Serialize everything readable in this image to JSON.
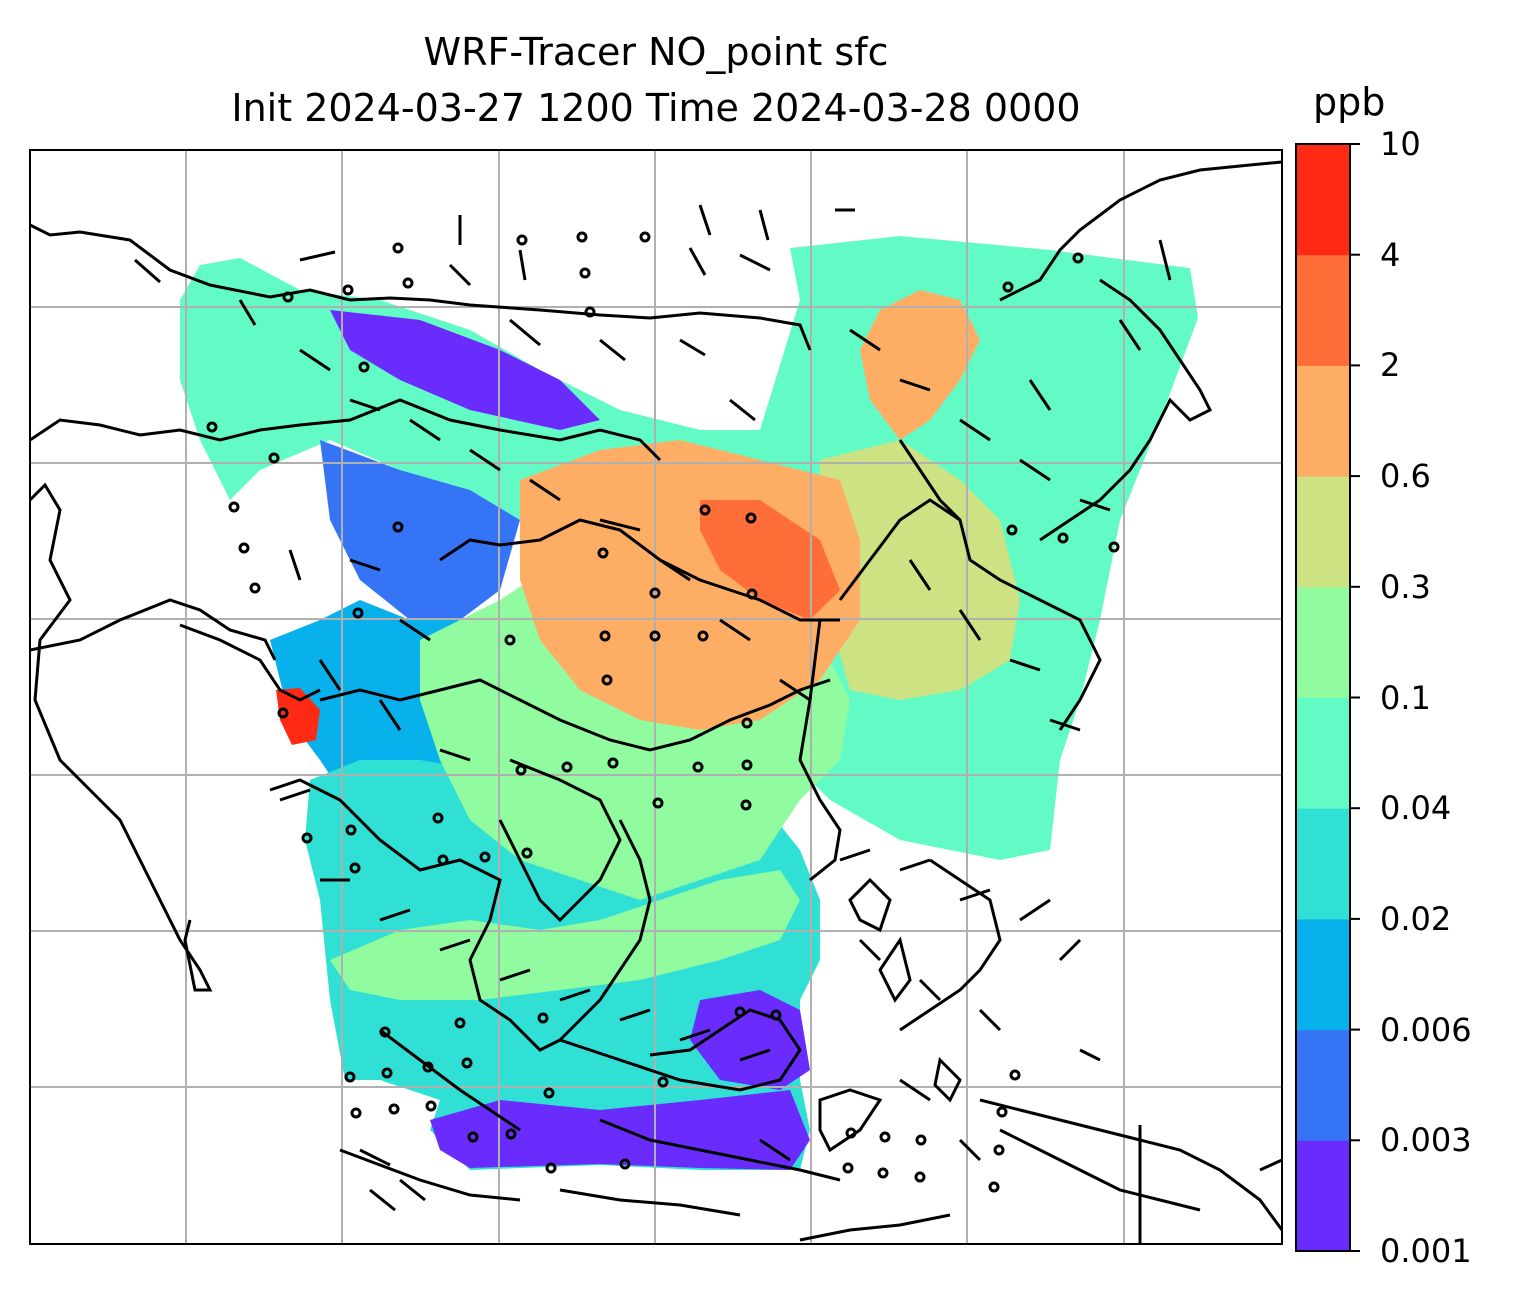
{
  "title": {
    "line1": "WRF-Tracer NO_point sfc",
    "line2": "Init 2024-03-27 1200 Time 2024-03-28 0000"
  },
  "colorbar": {
    "units": "ppb",
    "ticks": [
      "0.001",
      "0.003",
      "0.006",
      "0.02",
      "0.04",
      "0.1",
      "0.3",
      "0.6",
      "2",
      "4",
      "10"
    ],
    "colors": [
      "#6a2cfc",
      "#3575f5",
      "#08b1ec",
      "#30e0d4",
      "#62fbc6",
      "#90fb9f",
      "#cde283",
      "#feae64",
      "#ff6d39",
      "#ff2a14"
    ]
  },
  "map": {
    "projection": "mercator",
    "gridlines": true,
    "gridline_color": "#b0b0b0",
    "coastline_color": "#000000",
    "wind": "barbs"
  }
}
